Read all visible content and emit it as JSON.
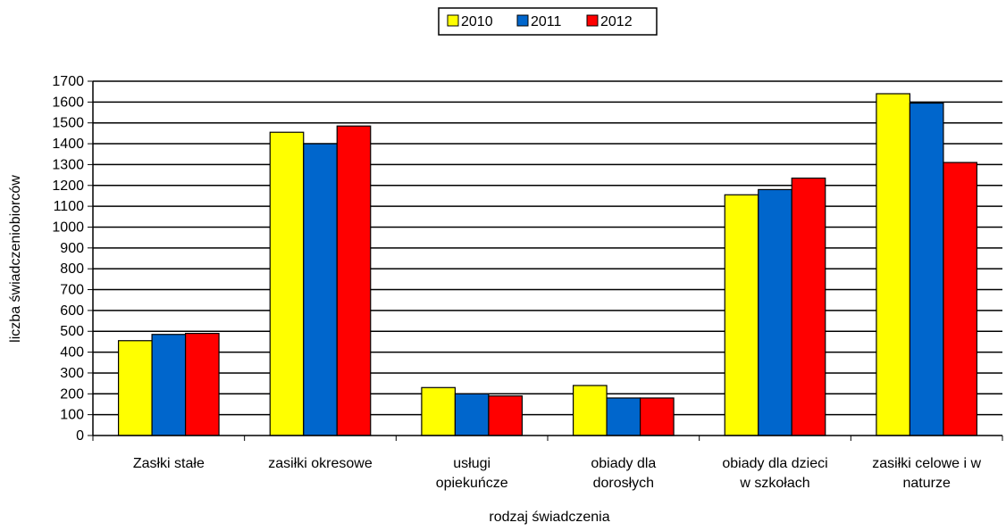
{
  "chart_data": {
    "type": "bar",
    "title": "",
    "xlabel": "rodzaj świadczenia",
    "ylabel": "liczba świadczeniobiorców",
    "ylim": [
      0,
      1700
    ],
    "ytick_step": 100,
    "grid": true,
    "legend_position": "top-center",
    "categories": [
      [
        "Zasłki stałe"
      ],
      [
        "zasiłki okresowe"
      ],
      [
        "usługi",
        "opiekuńcze"
      ],
      [
        "obiady dla",
        "dorosłych"
      ],
      [
        "obiady dla dzieci",
        "w szkołach"
      ],
      [
        "zasiłki celowe i w",
        "naturze"
      ]
    ],
    "series": [
      {
        "name": "2010",
        "color": "#ffff00",
        "values": [
          455,
          1455,
          230,
          240,
          1155,
          1640
        ]
      },
      {
        "name": "2011",
        "color": "#0066cc",
        "values": [
          485,
          1400,
          200,
          180,
          1180,
          1595
        ]
      },
      {
        "name": "2012",
        "color": "#ff0000",
        "values": [
          490,
          1485,
          190,
          180,
          1235,
          1310
        ]
      }
    ]
  }
}
